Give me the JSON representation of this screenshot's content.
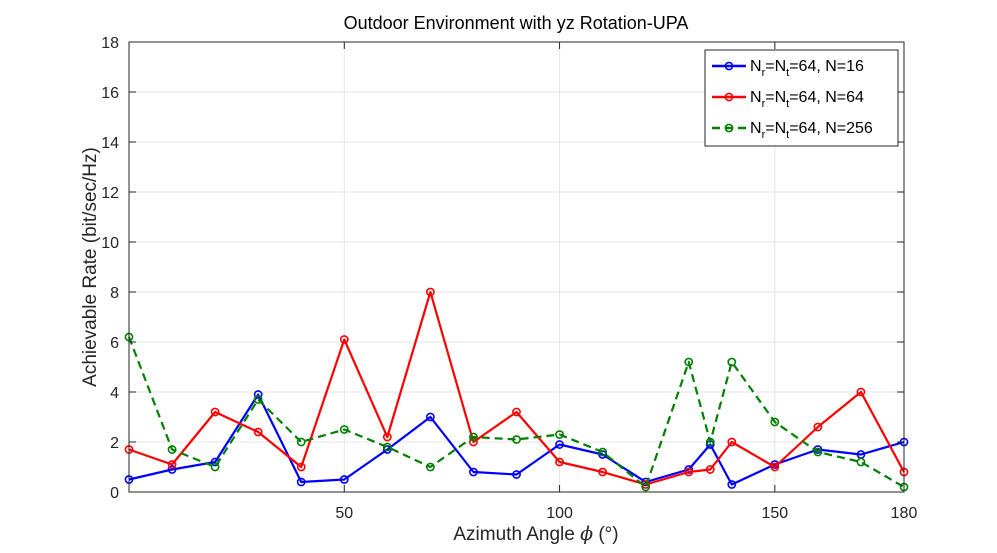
{
  "chart_data": {
    "type": "line",
    "title": "Outdoor Environment with yz Rotation-UPA",
    "xlabel_prefix": "Azimuth Angle ",
    "xlabel_symbol": "ϕ",
    "xlabel_suffix": " (°)",
    "ylabel": "Achievable Rate (bit/sec/Hz)",
    "xlim": [
      0,
      180
    ],
    "ylim": [
      0,
      18
    ],
    "xticks": [
      50,
      100,
      150,
      180
    ],
    "yticks": [
      0,
      2,
      4,
      6,
      8,
      10,
      12,
      14,
      16,
      18
    ],
    "grid": true,
    "legend_position": "top-right",
    "series": [
      {
        "name": "Nr=Nt=64, N=16",
        "legend": {
          "a": "N",
          "sub1": "r",
          "b": "=N",
          "sub2": "t",
          "c": "=64, N=16"
        },
        "color": "#0000ff",
        "dash": "solid",
        "x": [
          0,
          10,
          20,
          30,
          40,
          50,
          60,
          70,
          80,
          90,
          100,
          110,
          120,
          130,
          135,
          140,
          150,
          160,
          170,
          180
        ],
        "y": [
          0.5,
          0.9,
          1.2,
          3.9,
          0.4,
          0.5,
          1.7,
          3.0,
          0.8,
          0.7,
          1.9,
          1.5,
          0.4,
          0.9,
          1.9,
          0.3,
          1.1,
          1.7,
          1.5,
          2.0
        ]
      },
      {
        "name": "Nr=Nt=64, N=64",
        "legend": {
          "a": "N",
          "sub1": "r",
          "b": "=N",
          "sub2": "t",
          "c": "=64, N=64"
        },
        "color": "#ff0000",
        "dash": "solid",
        "x": [
          0,
          10,
          20,
          30,
          40,
          50,
          60,
          70,
          80,
          90,
          100,
          110,
          120,
          130,
          135,
          140,
          150,
          160,
          170,
          180
        ],
        "y": [
          1.7,
          1.1,
          3.2,
          2.4,
          1.0,
          6.1,
          2.2,
          8.0,
          2.0,
          3.2,
          1.2,
          0.8,
          0.3,
          0.8,
          0.9,
          2.0,
          1.0,
          2.6,
          4.0,
          0.8
        ]
      },
      {
        "name": "Nr=Nt=64, N=256",
        "legend": {
          "a": "N",
          "sub1": "r",
          "b": "=N",
          "sub2": "t",
          "c": "=64, N=256"
        },
        "color": "#008000",
        "dash": "dashed",
        "x": [
          0,
          10,
          20,
          30,
          40,
          50,
          60,
          70,
          80,
          90,
          100,
          110,
          120,
          130,
          135,
          140,
          150,
          160,
          170,
          180
        ],
        "y": [
          6.2,
          1.7,
          1.0,
          3.7,
          2.0,
          2.5,
          1.8,
          1.0,
          2.2,
          2.1,
          2.3,
          1.6,
          0.2,
          5.2,
          2.0,
          5.2,
          2.8,
          1.6,
          1.2,
          0.2
        ]
      }
    ]
  }
}
